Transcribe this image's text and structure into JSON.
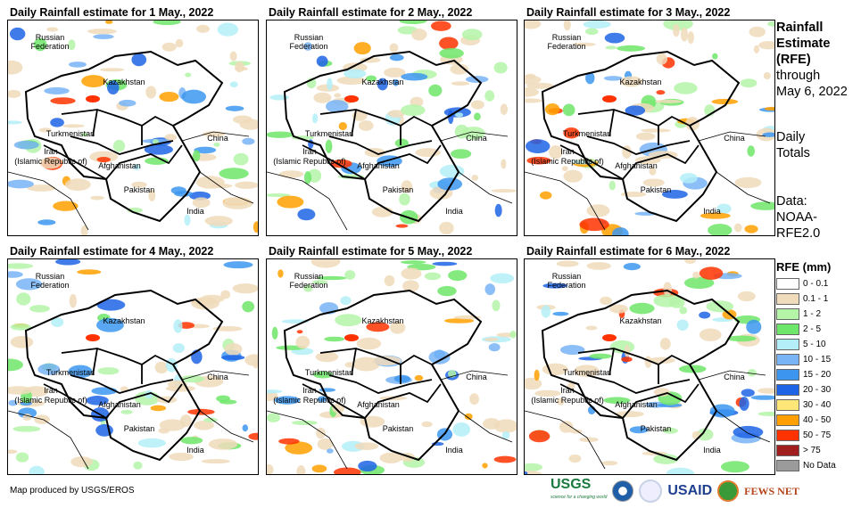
{
  "panels": [
    {
      "title": "Daily Rainfall estimate for 1 May., 2022"
    },
    {
      "title": "Daily Rainfall estimate for 2 May., 2022"
    },
    {
      "title": "Daily Rainfall estimate for 3 May., 2022"
    },
    {
      "title": "Daily Rainfall estimate for 4 May., 2022"
    },
    {
      "title": "Daily Rainfall estimate for 5 May., 2022"
    },
    {
      "title": "Daily Rainfall estimate for 6 May., 2022"
    }
  ],
  "map_labels": {
    "russia1": "Russian",
    "russia2": "Federation",
    "kazakhstan": "Kazakhstan",
    "turkmenistan": "Turkmenistan",
    "china": "China",
    "iran1": "Iran",
    "iran2": "(Islamic Republic of)",
    "afghanistan": "Afghanistan",
    "pakistan": "Pakistan",
    "india": "India"
  },
  "side": {
    "l1": "Rainfall",
    "l2": "Estimate",
    "l3": "(RFE)",
    "l4": "through",
    "l5": "May 6, 2022",
    "l6": "Daily",
    "l7": "Totals",
    "l8": "Data:",
    "l9": "NOAA-",
    "l10": "RFE2.0"
  },
  "legend": {
    "title": "RFE (mm)",
    "items": [
      {
        "label": "0 - 0.1",
        "color": "#ffffff"
      },
      {
        "label": "0.1 - 1",
        "color": "#f0dbbb"
      },
      {
        "label": "1 - 2",
        "color": "#b4f5a8"
      },
      {
        "label": "2 - 5",
        "color": "#6ee66a"
      },
      {
        "label": "5 - 10",
        "color": "#b4eef8"
      },
      {
        "label": "10 - 15",
        "color": "#78b4f6"
      },
      {
        "label": "15 - 20",
        "color": "#3c96f0"
      },
      {
        "label": "20 - 30",
        "color": "#1e64e6"
      },
      {
        "label": "30 - 40",
        "color": "#ffe678"
      },
      {
        "label": "40 - 50",
        "color": "#ffa000"
      },
      {
        "label": "50 - 75",
        "color": "#ff3200"
      },
      {
        "label": "> 75",
        "color": "#a01e1e"
      },
      {
        "label": "No Data",
        "color": "#9b9b9b"
      }
    ]
  },
  "credit": "Map produced by USGS/EROS",
  "logos": {
    "usgs": "USGS",
    "usaid": "USAID",
    "fews": "FEWS NET",
    "usgs_tag": "science for a changing world"
  }
}
